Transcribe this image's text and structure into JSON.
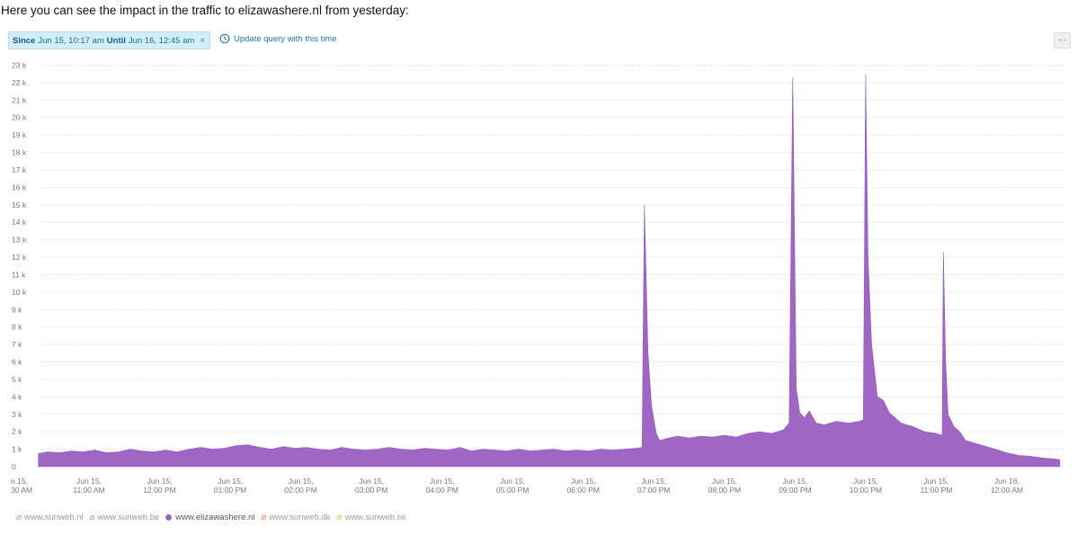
{
  "intro_text": "Here you can see the impact in the traffic to elizawashere.nl from yesterday:",
  "filter": {
    "since_label": "Since",
    "since_value": "Jun 15, 10:17 am",
    "until_label": "Until",
    "until_value": "Jun 16, 12:45 am",
    "close_glyph": "×"
  },
  "update_query_label": "Update query with this time",
  "more_button_label": "···",
  "legend": [
    {
      "name": "www.sunweb.nl",
      "color": "#7ecb6a",
      "active": false
    },
    {
      "name": "www.sunweb.be",
      "color": "#7ecb6a",
      "active": false
    },
    {
      "name": "www.elizawashere.nl",
      "color": "#a066c4",
      "active": true
    },
    {
      "name": "www.sunweb.dk",
      "color": "#f08060",
      "active": false
    },
    {
      "name": "www.sunweb.se",
      "color": "#f0c040",
      "active": false
    }
  ],
  "chart_data": {
    "type": "area",
    "title": "",
    "xlabel": "",
    "ylabel": "",
    "ylim": [
      0,
      23000
    ],
    "grid": true,
    "y_ticks": [
      "0",
      "1 k",
      "2 k",
      "3 k",
      "4 k",
      "5 k",
      "6 k",
      "7 k",
      "8 k",
      "9 k",
      "10 k",
      "11 k",
      "12 k",
      "13 k",
      "14 k",
      "15 k",
      "16 k",
      "17 k",
      "18 k",
      "19 k",
      "20 k",
      "21 k",
      "22 k",
      "23 k"
    ],
    "x_ticks": [
      {
        "line1": "n 15,",
        "line2": "30 AM",
        "t": "10:17"
      },
      {
        "line1": "Jun 15,",
        "line2": "11:00 AM",
        "t": "11:00"
      },
      {
        "line1": "Jun 15,",
        "line2": "12:00 PM",
        "t": "12:00"
      },
      {
        "line1": "Jun 15,",
        "line2": "01:00 PM",
        "t": "13:00"
      },
      {
        "line1": "Jun 15,",
        "line2": "02:00 PM",
        "t": "14:00"
      },
      {
        "line1": "Jun 15,",
        "line2": "03:00 PM",
        "t": "15:00"
      },
      {
        "line1": "Jun 15,",
        "line2": "04:00 PM",
        "t": "16:00"
      },
      {
        "line1": "Jun 15,",
        "line2": "05:00 PM",
        "t": "17:00"
      },
      {
        "line1": "Jun 15,",
        "line2": "06:00 PM",
        "t": "18:00"
      },
      {
        "line1": "Jun 15,",
        "line2": "07:00 PM",
        "t": "19:00"
      },
      {
        "line1": "Jun 15,",
        "line2": "08:00 PM",
        "t": "20:00"
      },
      {
        "line1": "Jun 15,",
        "line2": "09:00 PM",
        "t": "21:00"
      },
      {
        "line1": "Jun 15,",
        "line2": "10:00 PM",
        "t": "22:00"
      },
      {
        "line1": "Jun 15,",
        "line2": "11:00 PM",
        "t": "23:00"
      },
      {
        "line1": "Jun 16,",
        "line2": "12:00 AM",
        "t": "24:00"
      }
    ],
    "series": [
      {
        "name": "www.elizawashere.nl",
        "color": "#a066c4",
        "x": [
          "10:17",
          "10:25",
          "10:35",
          "10:45",
          "10:55",
          "11:05",
          "11:15",
          "11:25",
          "11:35",
          "11:45",
          "11:55",
          "12:05",
          "12:15",
          "12:25",
          "12:35",
          "12:45",
          "12:55",
          "13:05",
          "13:15",
          "13:25",
          "13:35",
          "13:45",
          "13:55",
          "14:05",
          "14:15",
          "14:25",
          "14:35",
          "14:45",
          "14:55",
          "15:05",
          "15:15",
          "15:25",
          "15:35",
          "15:45",
          "15:55",
          "16:05",
          "16:15",
          "16:25",
          "16:35",
          "16:45",
          "16:55",
          "17:05",
          "17:15",
          "17:25",
          "17:35",
          "17:45",
          "17:55",
          "18:05",
          "18:15",
          "18:25",
          "18:35",
          "18:45",
          "18:50",
          "18:52",
          "18:55",
          "18:58",
          "19:02",
          "19:05",
          "19:10",
          "19:20",
          "19:30",
          "19:40",
          "19:50",
          "20:00",
          "20:10",
          "20:20",
          "20:30",
          "20:40",
          "20:50",
          "20:55",
          "20:58",
          "21:01",
          "21:04",
          "21:08",
          "21:12",
          "21:18",
          "21:25",
          "21:35",
          "21:45",
          "21:55",
          "21:58",
          "22:00",
          "22:02",
          "22:05",
          "22:10",
          "22:15",
          "22:20",
          "22:25",
          "22:30",
          "22:40",
          "22:50",
          "23:00",
          "23:05",
          "23:06",
          "23:08",
          "23:10",
          "23:15",
          "23:20",
          "23:25",
          "23:30",
          "23:40",
          "23:50",
          "24:00",
          "24:10",
          "24:20",
          "24:30",
          "24:40",
          "24:45"
        ],
        "values": [
          750,
          850,
          800,
          900,
          850,
          950,
          800,
          850,
          1000,
          900,
          850,
          950,
          850,
          1000,
          1100,
          1000,
          1050,
          1200,
          1250,
          1100,
          1000,
          1150,
          1050,
          1100,
          1000,
          950,
          1100,
          1000,
          950,
          1000,
          1100,
          1000,
          950,
          1050,
          1000,
          950,
          1100,
          900,
          1000,
          950,
          900,
          1000,
          900,
          950,
          1000,
          900,
          950,
          900,
          1000,
          950,
          1000,
          1050,
          1100,
          15000,
          6500,
          3500,
          1900,
          1500,
          1600,
          1750,
          1650,
          1750,
          1700,
          1800,
          1700,
          1900,
          2000,
          1900,
          2100,
          2500,
          22300,
          4500,
          3100,
          2800,
          3200,
          2500,
          2400,
          2600,
          2500,
          2600,
          2700,
          22500,
          12000,
          7000,
          4000,
          3800,
          3100,
          2800,
          2500,
          2300,
          2000,
          1900,
          1800,
          12300,
          6000,
          3000,
          2300,
          2000,
          1500,
          1400,
          1200,
          1000,
          800,
          650,
          600,
          500,
          450,
          400
        ]
      }
    ]
  }
}
